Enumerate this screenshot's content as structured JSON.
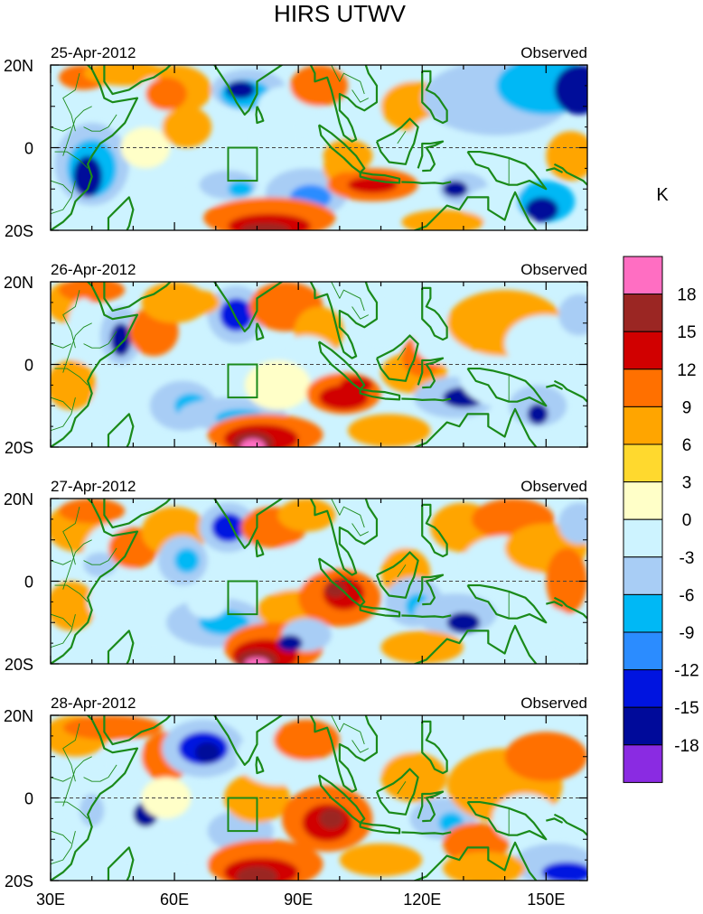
{
  "title": "HIRS UTWV",
  "unit": "K",
  "tag": "Observed",
  "dates": [
    "25-Apr-2012",
    "26-Apr-2012",
    "27-Apr-2012",
    "28-Apr-2012"
  ],
  "y_labels": [
    "20N",
    "0",
    "20S"
  ],
  "x_labels": [
    "30E",
    "60E",
    "90E",
    "120E",
    "150E"
  ],
  "colorbar": {
    "labels": [
      "18",
      "15",
      "12",
      "9",
      "6",
      "3",
      "0",
      "-3",
      "-6",
      "-9",
      "-12",
      "-15",
      "-18"
    ],
    "colors": [
      "#ff6ec2",
      "#9b2623",
      "#d10000",
      "#ff7000",
      "#ffa500",
      "#ffd92e",
      "#ffffc8",
      "#cdf3ff",
      "#a8cdf5",
      "#00b8f5",
      "#2b8cff",
      "#0014e0",
      "#000a9a",
      "#8a2be2"
    ]
  },
  "coast_color": "#1a8a1a",
  "extent": {
    "lon": [
      30,
      160
    ],
    "lat": [
      -20,
      20
    ]
  },
  "box_region": {
    "lon": [
      73,
      80
    ],
    "lat": [
      -8,
      0
    ]
  }
}
